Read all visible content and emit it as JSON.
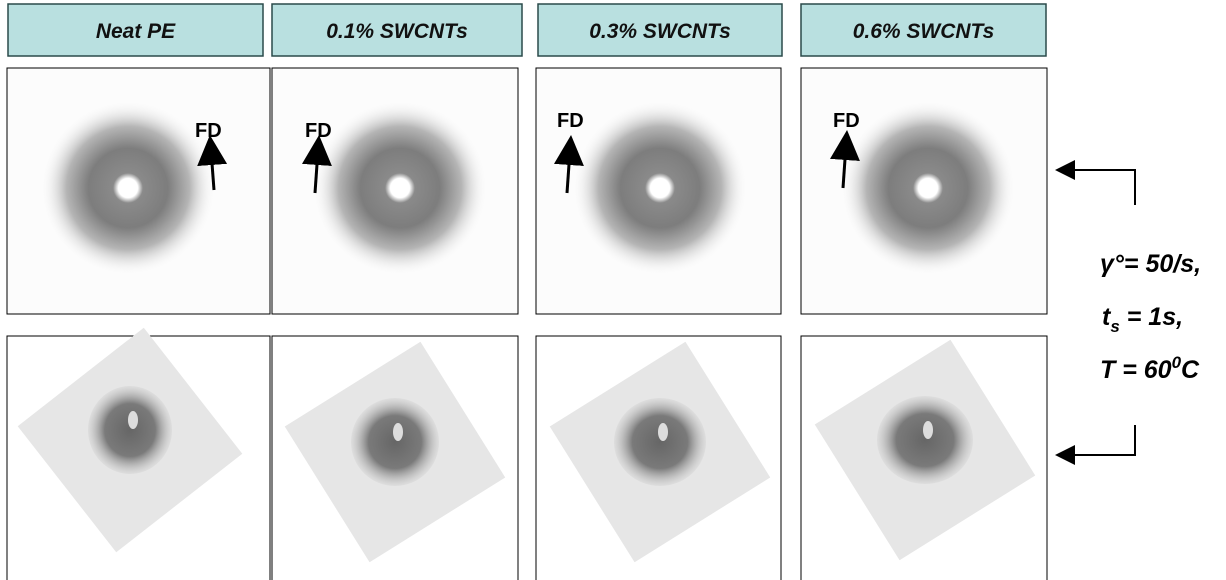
{
  "header": {
    "columns": [
      "Neat PE",
      "0.1% SWCNTs",
      "0.3% SWCNTs",
      "0.6% SWCNTs"
    ]
  },
  "panels": {
    "direction_label": "FD"
  },
  "conditions": {
    "line1": "γ°= 50/s,",
    "line2": {
      "base": "t",
      "sub": "s",
      "rest": " = 1s,"
    },
    "line3": {
      "base": "T = 60",
      "sup": "0",
      "rest": "C"
    }
  }
}
